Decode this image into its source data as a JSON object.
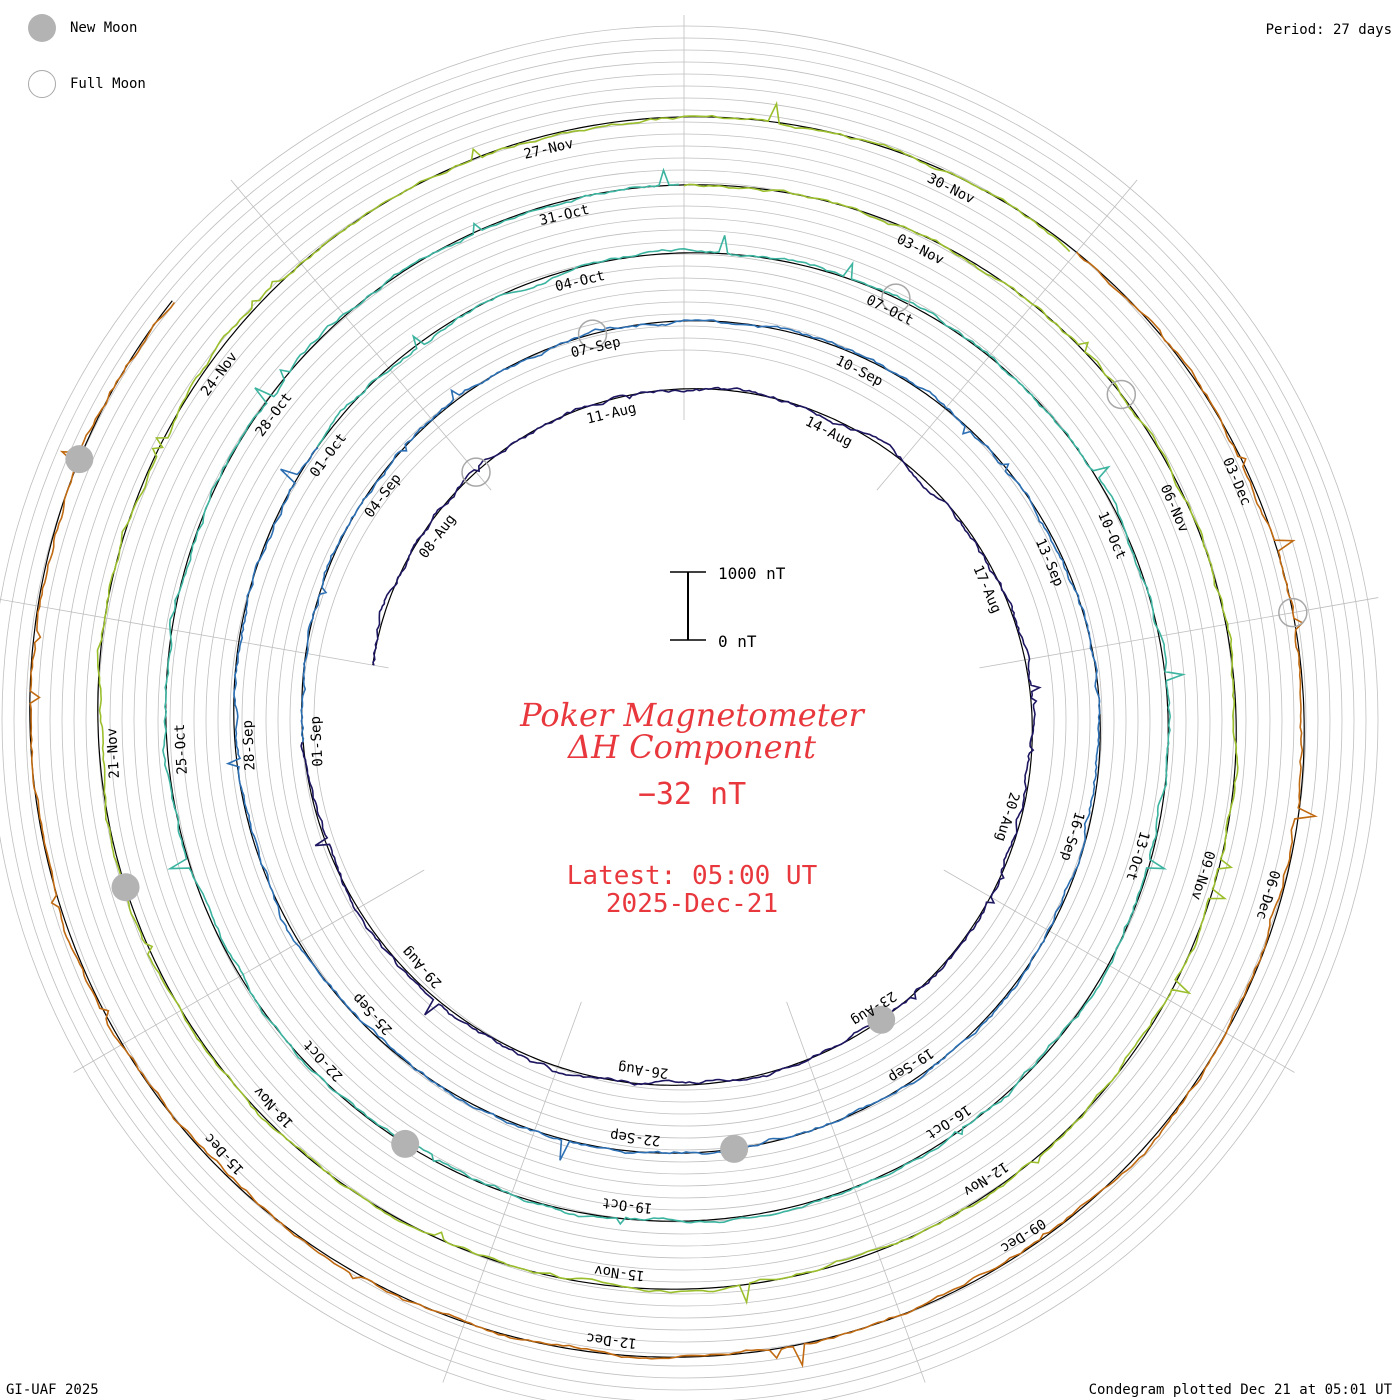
{
  "legend": {
    "new_moon": "New Moon",
    "full_moon": "Full Moon"
  },
  "period_label": "Period: 27 days",
  "credit": "GI-UAF 2025",
  "plotted": "Condegram plotted Dec 21 at 05:01 UT",
  "colors": {
    "title": "#e8383d",
    "grid": "#bfbfbf",
    "baseline": "#000000",
    "moon_fill": "#b3b3b3"
  },
  "chart_data": {
    "type": "line",
    "subtype": "condegram-spiral",
    "title": "Poker Magnetometer",
    "subtitle": "ΔH Component",
    "current_value": "−32 nT",
    "latest_time": "Latest: 05:00 UT",
    "latest_date": "2025-Dec-21",
    "scale_bar": {
      "top_label": "1000 nT",
      "bottom_label": "0 nT",
      "range": [
        0,
        1000
      ]
    },
    "period_days": 27,
    "start_date": "2025-08-06",
    "end_date": "2025-12-21",
    "series": [
      {
        "name": "Aug",
        "color": "#1d1660",
        "date_labels": [
          "08-Aug",
          "11-Aug",
          "14-Aug",
          "17-Aug",
          "20-Aug",
          "23-Aug",
          "26-Aug",
          "29-Aug"
        ]
      },
      {
        "name": "Sep",
        "color": "#2c6fb3",
        "date_labels": [
          "01-Sep",
          "04-Sep",
          "07-Sep",
          "10-Sep",
          "13-Sep",
          "16-Sep",
          "19-Sep",
          "22-Sep",
          "25-Sep",
          "28-Sep"
        ]
      },
      {
        "name": "Oct",
        "color": "#3cb4a0",
        "date_labels": [
          "01-Oct",
          "04-Oct",
          "07-Oct",
          "10-Oct",
          "13-Oct",
          "16-Oct",
          "19-Oct",
          "22-Oct",
          "25-Oct",
          "28-Oct",
          "31-Oct"
        ]
      },
      {
        "name": "Nov",
        "color": "#9bbf2c",
        "date_labels": [
          "03-Nov",
          "06-Nov",
          "09-Nov",
          "12-Nov",
          "15-Nov",
          "18-Nov",
          "21-Nov",
          "24-Nov",
          "27-Nov",
          "30-Nov"
        ]
      },
      {
        "name": "Dec",
        "color": "#c06a12",
        "date_labels": [
          "03-Dec",
          "06-Dec",
          "09-Dec",
          "12-Dec",
          "15-Dec"
        ]
      }
    ],
    "new_moons": [
      "2025-08-23",
      "2025-09-21",
      "2025-10-21",
      "2025-11-20",
      "2025-12-20"
    ],
    "full_moons": [
      "2025-08-09",
      "2025-09-07",
      "2025-10-07",
      "2025-11-05",
      "2025-12-04"
    ],
    "grid": true
  }
}
